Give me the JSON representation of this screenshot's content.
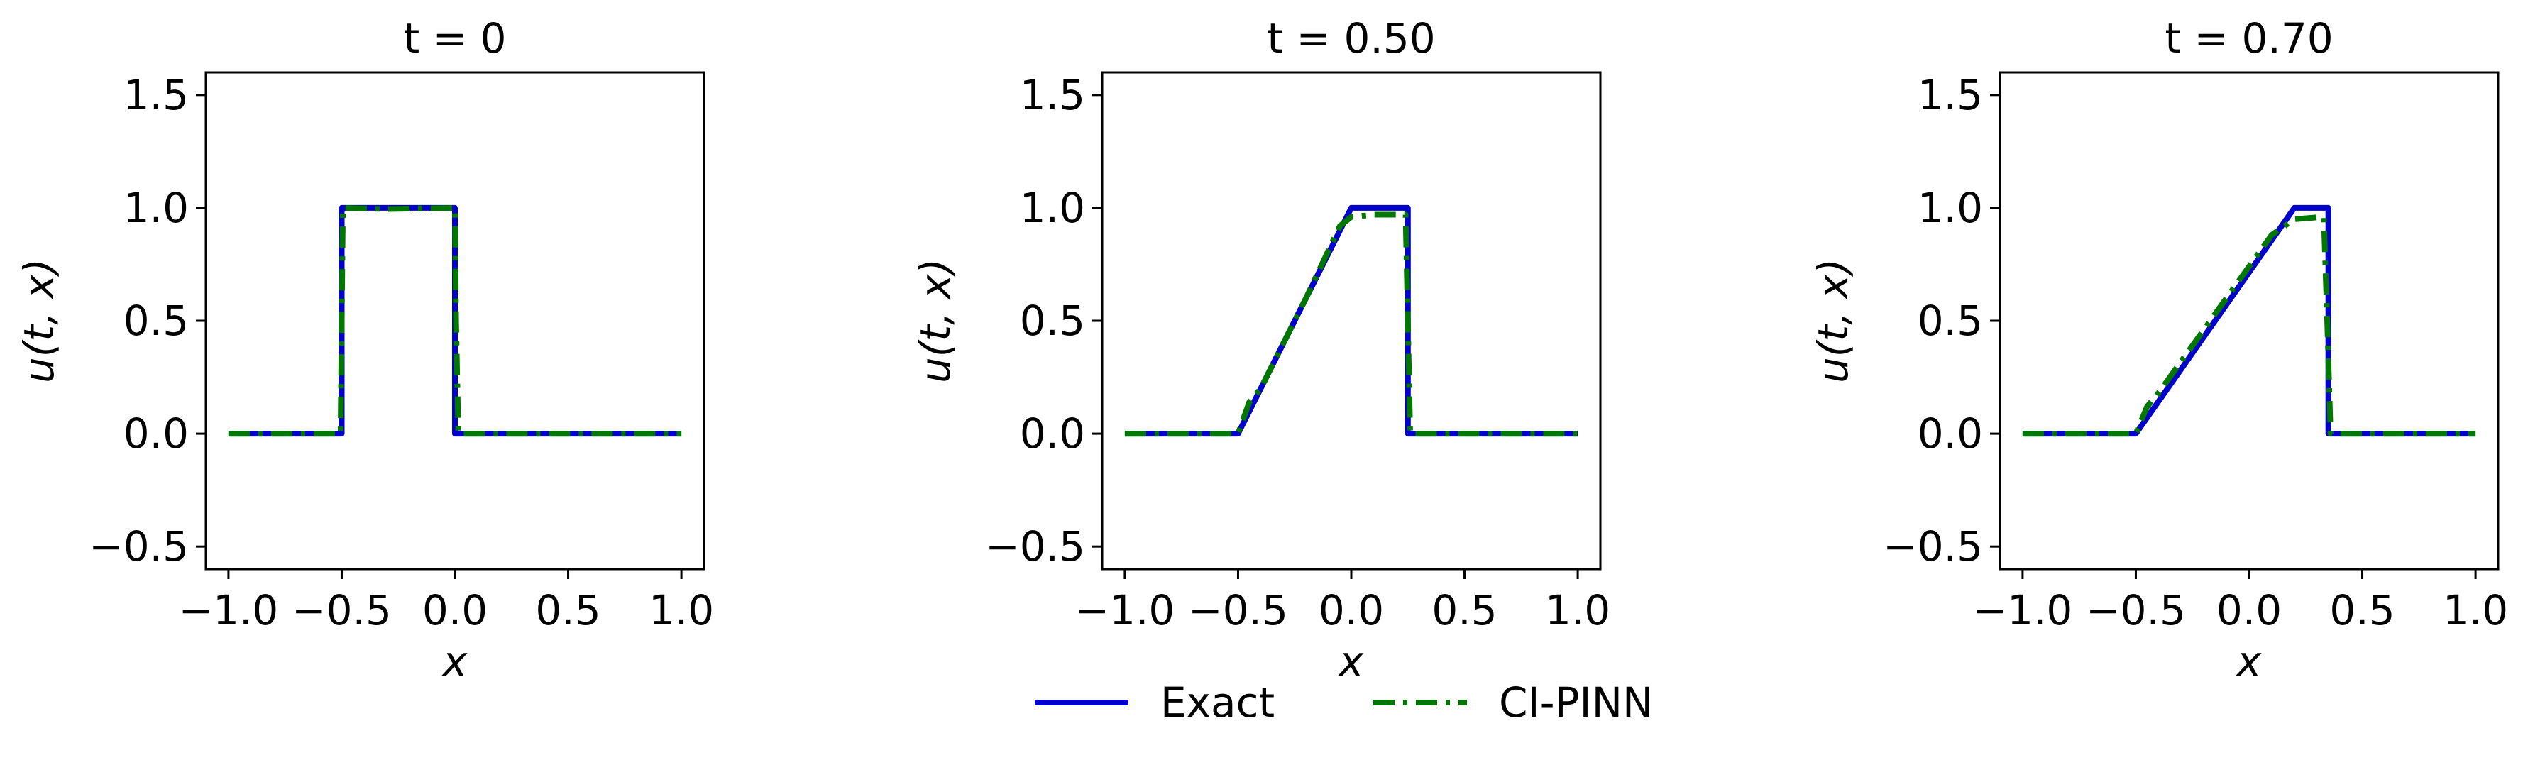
{
  "chart_data": [
    {
      "type": "line",
      "title": "t = 0",
      "xlabel": "x",
      "ylabel": "u(t, x)",
      "xlim": [
        -1.1,
        1.1
      ],
      "ylim": [
        -0.6,
        1.6
      ],
      "xticks": [
        -1.0,
        -0.5,
        0.0,
        0.5,
        1.0
      ],
      "xtick_labels": [
        "−1.0",
        "−0.5",
        "0.0",
        "0.5",
        "1.0"
      ],
      "yticks": [
        -0.5,
        0.0,
        0.5,
        1.0,
        1.5
      ],
      "ytick_labels": [
        "−0.5",
        "0.0",
        "0.5",
        "1.0",
        "1.5"
      ],
      "series": [
        {
          "name": "Exact",
          "x": [
            -1.0,
            -0.5,
            -0.5,
            0.0,
            0.0,
            1.0
          ],
          "y": [
            0.0,
            0.0,
            1.0,
            1.0,
            0.0,
            0.0
          ]
        },
        {
          "name": "CI-PINN",
          "x": [
            -1.0,
            -0.505,
            -0.495,
            -0.3,
            0.0,
            0.005,
            0.015,
            1.0
          ],
          "y": [
            0.0,
            0.0,
            1.0,
            0.995,
            1.0,
            0.5,
            0.0,
            0.0
          ]
        }
      ]
    },
    {
      "type": "line",
      "title": "t = 0.50",
      "xlabel": "x",
      "ylabel": "u(t, x)",
      "xlim": [
        -1.1,
        1.1
      ],
      "ylim": [
        -0.6,
        1.6
      ],
      "xticks": [
        -1.0,
        -0.5,
        0.0,
        0.5,
        1.0
      ],
      "xtick_labels": [
        "−1.0",
        "−0.5",
        "0.0",
        "0.5",
        "1.0"
      ],
      "yticks": [
        -0.5,
        0.0,
        0.5,
        1.0,
        1.5
      ],
      "ytick_labels": [
        "−0.5",
        "0.0",
        "0.5",
        "1.0",
        "1.5"
      ],
      "series": [
        {
          "name": "Exact",
          "x": [
            -1.0,
            -0.5,
            0.0,
            0.25,
            0.25,
            1.0
          ],
          "y": [
            0.0,
            0.0,
            1.0,
            1.0,
            0.0,
            0.0
          ]
        },
        {
          "name": "CI-PINN",
          "x": [
            -1.0,
            -0.5,
            -0.45,
            -0.4,
            -0.2,
            -0.05,
            0.0,
            0.1,
            0.24,
            0.26,
            1.0
          ],
          "y": [
            0.0,
            0.0,
            0.14,
            0.2,
            0.6,
            0.92,
            0.96,
            0.97,
            0.97,
            0.0,
            0.0
          ]
        }
      ]
    },
    {
      "type": "line",
      "title": "t = 0.70",
      "xlabel": "x",
      "ylabel": "u(t, x)",
      "xlim": [
        -1.1,
        1.1
      ],
      "ylim": [
        -0.6,
        1.6
      ],
      "xticks": [
        -1.0,
        -0.5,
        0.0,
        0.5,
        1.0
      ],
      "xtick_labels": [
        "−1.0",
        "−0.5",
        "0.0",
        "0.5",
        "1.0"
      ],
      "yticks": [
        -0.5,
        0.0,
        0.5,
        1.0,
        1.5
      ],
      "ytick_labels": [
        "−0.5",
        "0.0",
        "0.5",
        "1.0",
        "1.5"
      ],
      "series": [
        {
          "name": "Exact",
          "x": [
            -1.0,
            -0.5,
            0.2,
            0.35,
            0.35,
            1.0
          ],
          "y": [
            0.0,
            0.0,
            1.0,
            1.0,
            0.0,
            0.0
          ]
        },
        {
          "name": "CI-PINN",
          "x": [
            -1.0,
            -0.5,
            -0.45,
            -0.4,
            -0.2,
            0.0,
            0.1,
            0.2,
            0.33,
            0.345,
            0.36,
            1.0
          ],
          "y": [
            0.0,
            0.0,
            0.12,
            0.18,
            0.46,
            0.74,
            0.88,
            0.95,
            0.96,
            0.5,
            0.0,
            0.0
          ]
        }
      ]
    }
  ],
  "legend": {
    "position": "bottom-center",
    "items": [
      {
        "label": "Exact",
        "color": "#0000cc",
        "style": "solid"
      },
      {
        "label": "CI-PINN",
        "color": "#007700",
        "style": "dash-dot"
      }
    ]
  },
  "colors": {
    "exact": "#0000cc",
    "ci_pinn": "#007700",
    "axes": "#000000"
  }
}
